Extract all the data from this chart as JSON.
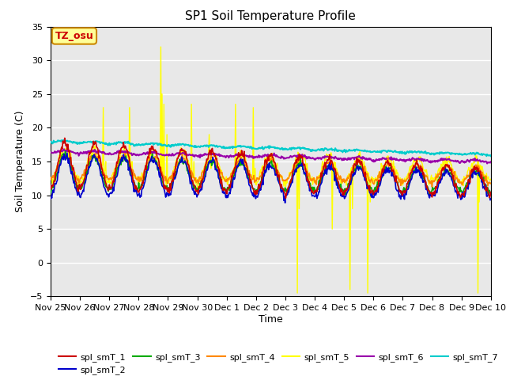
{
  "title": "SP1 Soil Temperature Profile",
  "xlabel": "Time",
  "ylabel": "Soil Temperature (C)",
  "ylim": [
    -5,
    35
  ],
  "yticks": [
    -5,
    0,
    5,
    10,
    15,
    20,
    25,
    30,
    35
  ],
  "xtick_labels": [
    "Nov 25",
    "Nov 26",
    "Nov 27",
    "Nov 28",
    "Nov 29",
    "Nov 30",
    "Dec 1",
    "Dec 2",
    "Dec 3",
    "Dec 4",
    "Dec 5",
    "Dec 6",
    "Dec 7",
    "Dec 8",
    "Dec 9",
    "Dec 10"
  ],
  "background_color": "#e8e8e8",
  "series_colors": {
    "spl_smT_1": "#cc0000",
    "spl_smT_2": "#0000cc",
    "spl_smT_3": "#00aa00",
    "spl_smT_4": "#ff8800",
    "spl_smT_5": "#ffff00",
    "spl_smT_6": "#9900aa",
    "spl_smT_7": "#00cccc"
  },
  "annotation_text": "TZ_osu",
  "annotation_color": "#cc0000",
  "annotation_bg": "#ffff99",
  "annotation_border": "#cc8800",
  "figsize": [
    6.4,
    4.8
  ],
  "dpi": 100
}
